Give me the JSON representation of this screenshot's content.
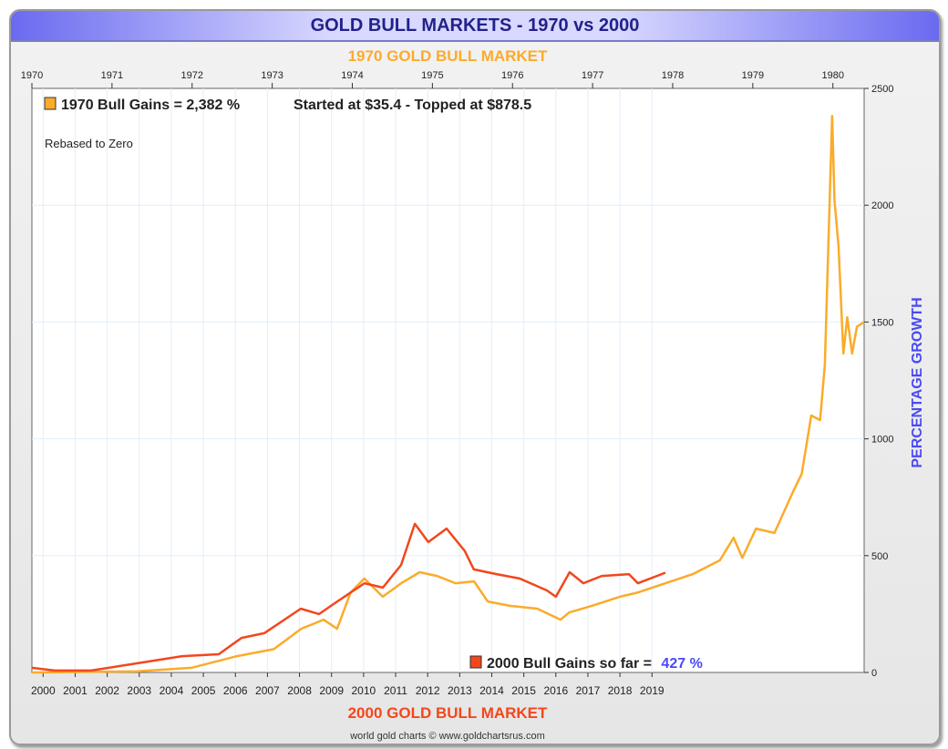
{
  "header": {
    "title": "GOLD BULL MARKETS - 1970 vs 2000"
  },
  "colors": {
    "series1970": "#fbab2a",
    "series2000": "#f2471c",
    "ylabel": "#4a4af5",
    "title": "#22228a"
  },
  "chart_data": {
    "type": "line",
    "title": "GOLD BULL MARKETS - 1970 vs 2000",
    "top_axis_label": "1970 GOLD BULL MARKET",
    "bottom_axis_label": "2000 GOLD BULL MARKET",
    "ylabel": "PERCENTAGE GROWTH",
    "ylim": [
      0,
      2500
    ],
    "yticks": [
      0,
      500,
      1000,
      1500,
      2000,
      2500
    ],
    "top_xticks": [
      "1970",
      "1971",
      "1972",
      "1973",
      "1974",
      "1975",
      "1976",
      "1977",
      "1978",
      "1979",
      "1980"
    ],
    "top_xlim": [
      1970,
      1980.39
    ],
    "bottom_xticks": [
      "2000",
      "2001",
      "2002",
      "2003",
      "2004",
      "2005",
      "2006",
      "2007",
      "2008",
      "2009",
      "2010",
      "2011",
      "2012",
      "2013",
      "2014",
      "2015",
      "2016",
      "2017",
      "2018",
      "2019"
    ],
    "bottom_xlim": [
      1999.65,
      2025.62
    ],
    "annotations": {
      "legend1970": "1970 Bull Gains = 2,382 %",
      "started": "Started at $35.4 - Topped at $878.5",
      "rebased": "Rebased to Zero",
      "legend2000": "2000 Bull Gains so far = ",
      "gain2000": "427 %",
      "credit": "world gold charts © www.goldchartsrus.com"
    },
    "series": [
      {
        "name": "1970 Bull Market",
        "axis": "top",
        "points": [
          [
            1970.0,
            0
          ],
          [
            1971.31,
            5
          ],
          [
            1971.99,
            20
          ],
          [
            1972.56,
            70
          ],
          [
            1973.02,
            100
          ],
          [
            1973.36,
            187
          ],
          [
            1973.64,
            226
          ],
          [
            1973.81,
            187
          ],
          [
            1973.98,
            343
          ],
          [
            1974.15,
            402
          ],
          [
            1974.38,
            324
          ],
          [
            1974.61,
            382
          ],
          [
            1974.84,
            429
          ],
          [
            1975.06,
            413
          ],
          [
            1975.29,
            382
          ],
          [
            1975.52,
            390
          ],
          [
            1975.69,
            304
          ],
          [
            1975.97,
            285
          ],
          [
            1976.31,
            273
          ],
          [
            1976.6,
            226
          ],
          [
            1976.71,
            257
          ],
          [
            1976.99,
            285
          ],
          [
            1977.34,
            324
          ],
          [
            1977.57,
            343
          ],
          [
            1977.91,
            382
          ],
          [
            1978.25,
            421
          ],
          [
            1978.59,
            480
          ],
          [
            1978.76,
            577
          ],
          [
            1978.87,
            491
          ],
          [
            1979.04,
            616
          ],
          [
            1979.27,
            597
          ],
          [
            1979.5,
            772
          ],
          [
            1979.61,
            850
          ],
          [
            1979.73,
            1100
          ],
          [
            1979.84,
            1080
          ],
          [
            1979.9,
            1318
          ],
          [
            1979.95,
            1903
          ],
          [
            1979.99,
            2382
          ],
          [
            1980.02,
            2020
          ],
          [
            1980.07,
            1825
          ],
          [
            1980.13,
            1365
          ],
          [
            1980.18,
            1520
          ],
          [
            1980.24,
            1365
          ],
          [
            1980.3,
            1480
          ],
          [
            1980.39,
            1500
          ]
        ]
      },
      {
        "name": "2000 Bull Market",
        "axis": "bottom",
        "points": [
          [
            1999.65,
            20
          ],
          [
            2000.36,
            8
          ],
          [
            2001.5,
            8
          ],
          [
            2002.92,
            39
          ],
          [
            2004.34,
            70
          ],
          [
            2005.48,
            78
          ],
          [
            2006.19,
            148
          ],
          [
            2006.9,
            168
          ],
          [
            2008.04,
            273
          ],
          [
            2008.61,
            250
          ],
          [
            2009.18,
            304
          ],
          [
            2010.03,
            382
          ],
          [
            2010.6,
            363
          ],
          [
            2011.17,
            460
          ],
          [
            2011.6,
            636
          ],
          [
            2012.02,
            558
          ],
          [
            2012.59,
            616
          ],
          [
            2013.16,
            519
          ],
          [
            2013.44,
            441
          ],
          [
            2014.15,
            421
          ],
          [
            2014.87,
            402
          ],
          [
            2015.72,
            351
          ],
          [
            2016.0,
            324
          ],
          [
            2016.43,
            429
          ],
          [
            2016.86,
            382
          ],
          [
            2017.43,
            413
          ],
          [
            2018.28,
            421
          ],
          [
            2018.56,
            382
          ],
          [
            2019.42,
            427
          ]
        ]
      }
    ]
  }
}
